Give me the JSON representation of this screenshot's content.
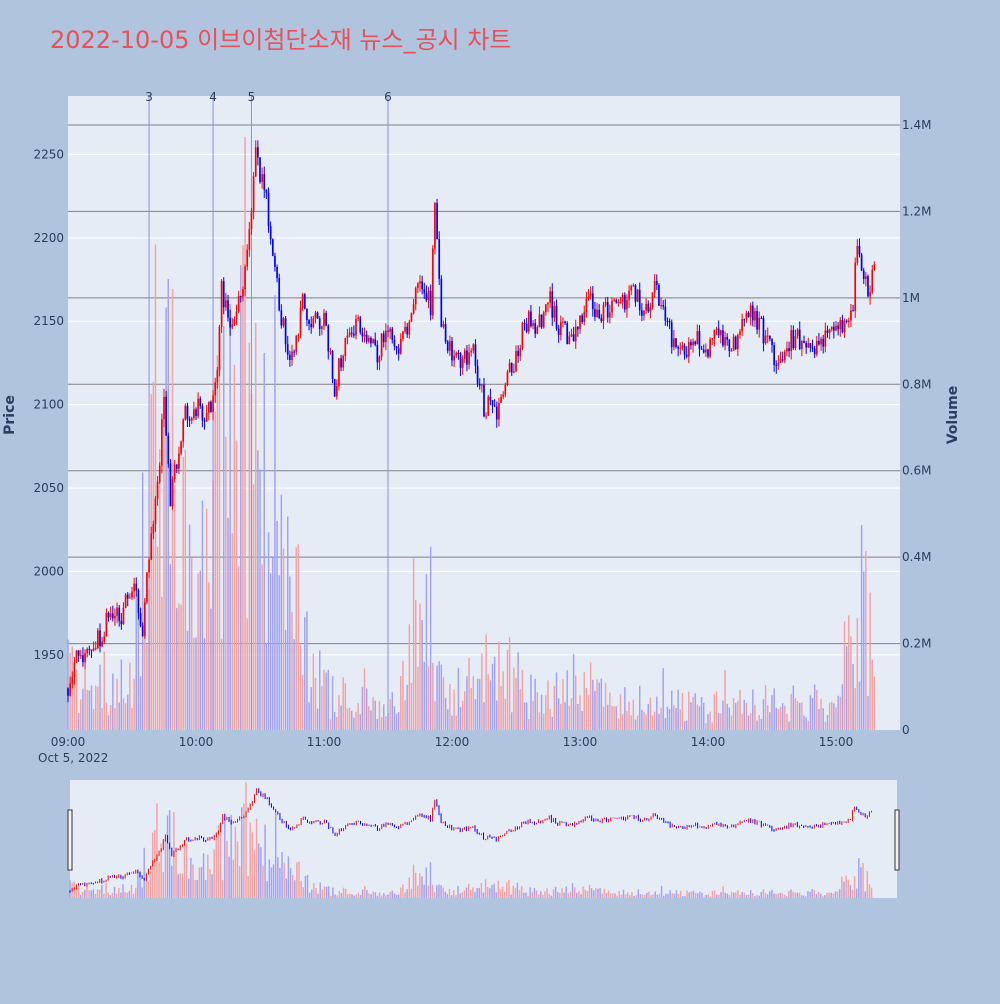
{
  "title": "2022-10-05 이브이첨단소재 뉴스_공시 차트",
  "colors": {
    "background": "#b0c4de",
    "plot_bg": "#e5ecf6",
    "up": "#ff0000",
    "down": "#0000ff",
    "title": "#e8505b",
    "volume_up": "#f4a3a3",
    "volume_down": "#a3a3f4",
    "news_line": "#8c8cf0",
    "volume_grid": "#808080"
  },
  "chart_data": {
    "type": "candlestick",
    "xlabel": "",
    "ylabel": "Price",
    "y2label": "Volume",
    "date_label": "Oct 5, 2022",
    "x_range": [
      "09:00",
      "15:30"
    ],
    "x_ticks": [
      "09:00",
      "10:00",
      "11:00",
      "12:00",
      "13:00",
      "14:00",
      "15:00"
    ],
    "y_range": [
      1905,
      2285
    ],
    "y_ticks": [
      1950,
      2000,
      2050,
      2100,
      2150,
      2200,
      2250
    ],
    "volume_range": [
      0,
      1400000
    ],
    "volume_ticks": [
      {
        "value": 0,
        "label": "0"
      },
      {
        "value": 200000,
        "label": "0.2M"
      },
      {
        "value": 400000,
        "label": "0.4M"
      },
      {
        "value": 600000,
        "label": "0.6M"
      },
      {
        "value": 800000,
        "label": "0.8M"
      },
      {
        "value": 1000000,
        "label": "1M"
      },
      {
        "value": 1200000,
        "label": "1.2M"
      },
      {
        "value": 1400000,
        "label": "1.4M"
      }
    ],
    "news_markers": [
      {
        "label": "3",
        "time": "09:38"
      },
      {
        "label": "4",
        "time": "10:08"
      },
      {
        "label": "5",
        "time": "10:26"
      },
      {
        "label": "6",
        "time": "11:30"
      }
    ],
    "price_path": [
      [
        "09:00",
        1930
      ],
      [
        "09:05",
        1950
      ],
      [
        "09:10",
        1955
      ],
      [
        "09:15",
        1960
      ],
      [
        "09:20",
        1980
      ],
      [
        "09:25",
        1970
      ],
      [
        "09:30",
        1995
      ],
      [
        "09:35",
        1965
      ],
      [
        "09:38",
        2010
      ],
      [
        "09:41",
        2040
      ],
      [
        "09:45",
        2100
      ],
      [
        "09:48",
        2045
      ],
      [
        "09:50",
        2060
      ],
      [
        "09:55",
        2095
      ],
      [
        "10:00",
        2100
      ],
      [
        "10:05",
        2090
      ],
      [
        "10:10",
        2120
      ],
      [
        "10:12",
        2170
      ],
      [
        "10:15",
        2150
      ],
      [
        "10:20",
        2160
      ],
      [
        "10:25",
        2200
      ],
      [
        "10:28",
        2250
      ],
      [
        "10:32",
        2230
      ],
      [
        "10:37",
        2180
      ],
      [
        "10:41",
        2145
      ],
      [
        "10:45",
        2125
      ],
      [
        "10:50",
        2160
      ],
      [
        "10:55",
        2150
      ],
      [
        "11:00",
        2150
      ],
      [
        "11:05",
        2110
      ],
      [
        "11:10",
        2140
      ],
      [
        "11:15",
        2150
      ],
      [
        "11:20",
        2140
      ],
      [
        "11:25",
        2130
      ],
      [
        "11:30",
        2145
      ],
      [
        "11:35",
        2135
      ],
      [
        "11:40",
        2150
      ],
      [
        "11:45",
        2180
      ],
      [
        "11:50",
        2160
      ],
      [
        "11:52",
        2215
      ],
      [
        "11:55",
        2150
      ],
      [
        "12:00",
        2130
      ],
      [
        "12:05",
        2125
      ],
      [
        "12:10",
        2130
      ],
      [
        "12:15",
        2100
      ],
      [
        "12:20",
        2095
      ],
      [
        "12:25",
        2110
      ],
      [
        "12:30",
        2130
      ],
      [
        "12:35",
        2150
      ],
      [
        "12:40",
        2145
      ],
      [
        "12:45",
        2165
      ],
      [
        "12:50",
        2145
      ],
      [
        "12:55",
        2140
      ],
      [
        "13:00",
        2150
      ],
      [
        "13:05",
        2165
      ],
      [
        "13:10",
        2150
      ],
      [
        "13:15",
        2165
      ],
      [
        "13:20",
        2160
      ],
      [
        "13:25",
        2170
      ],
      [
        "13:30",
        2155
      ],
      [
        "13:35",
        2170
      ],
      [
        "13:40",
        2150
      ],
      [
        "13:45",
        2135
      ],
      [
        "13:50",
        2130
      ],
      [
        "13:55",
        2140
      ],
      [
        "14:00",
        2135
      ],
      [
        "14:05",
        2140
      ],
      [
        "14:10",
        2130
      ],
      [
        "14:15",
        2145
      ],
      [
        "14:20",
        2160
      ],
      [
        "14:25",
        2145
      ],
      [
        "14:30",
        2130
      ],
      [
        "14:32",
        2120
      ],
      [
        "14:35",
        2130
      ],
      [
        "14:40",
        2140
      ],
      [
        "14:45",
        2135
      ],
      [
        "14:50",
        2130
      ],
      [
        "14:55",
        2140
      ],
      [
        "15:00",
        2145
      ],
      [
        "15:05",
        2150
      ],
      [
        "15:08",
        2160
      ],
      [
        "15:10",
        2200
      ],
      [
        "15:12",
        2185
      ],
      [
        "15:15",
        2170
      ],
      [
        "15:18",
        2180
      ]
    ],
    "volume_profile": [
      [
        "09:00",
        150000
      ],
      [
        "09:30",
        120000
      ],
      [
        "09:38",
        700000
      ],
      [
        "09:45",
        900000
      ],
      [
        "10:00",
        250000
      ],
      [
        "10:10",
        700000
      ],
      [
        "10:25",
        800000
      ],
      [
        "10:40",
        450000
      ],
      [
        "11:00",
        100000
      ],
      [
        "11:30",
        50000
      ],
      [
        "11:50",
        300000
      ],
      [
        "12:00",
        100000
      ],
      [
        "12:20",
        200000
      ],
      [
        "12:40",
        70000
      ],
      [
        "13:00",
        120000
      ],
      [
        "13:30",
        70000
      ],
      [
        "14:00",
        60000
      ],
      [
        "14:30",
        80000
      ],
      [
        "15:00",
        70000
      ],
      [
        "15:10",
        400000
      ],
      [
        "15:18",
        200000
      ]
    ]
  }
}
